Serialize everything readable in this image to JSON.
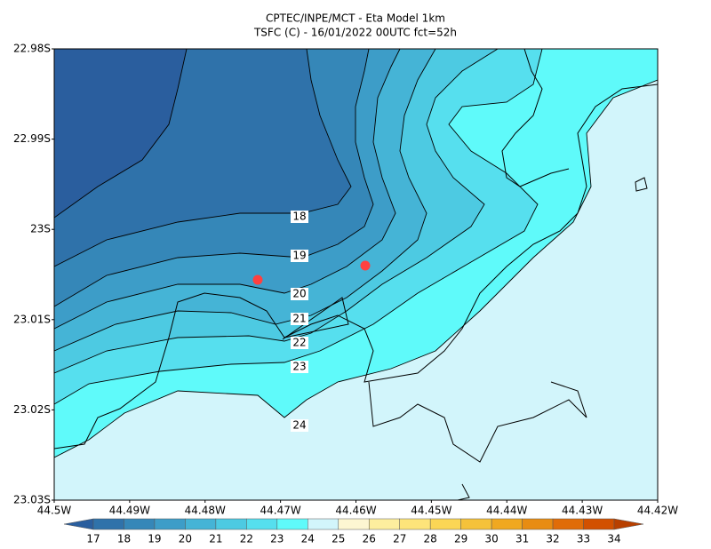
{
  "header": {
    "title": "CPTEC/INPE/MCT -  Eta Model 1km",
    "subtitle": "TSFC (C) - 16/01/2022 00UTC fct=52h"
  },
  "map": {
    "y_axis_labels": [
      "22.98S",
      "22.99S",
      "23S",
      "23.01S",
      "23.02S",
      "23.03S"
    ],
    "x_axis_labels": [
      "44.5W",
      "44.49W",
      "44.48W",
      "44.47W",
      "44.46W",
      "44.45W",
      "44.44W",
      "44.43W",
      "44.42W"
    ],
    "contour_levels": [
      18,
      19,
      20,
      21,
      22,
      23,
      24
    ]
  },
  "colorbar": {
    "levels": [
      17,
      18,
      19,
      20,
      21,
      22,
      23,
      24,
      25,
      26,
      27,
      28,
      29,
      30,
      31,
      32,
      33,
      34
    ],
    "colors": [
      "#2a5e9e",
      "#2f72aa",
      "#3587b8",
      "#3d9dc8",
      "#45b4d6",
      "#4dcae2",
      "#56dfee",
      "#5ffafa",
      "#d2f5fb",
      "#fdf6d2",
      "#fdee9e",
      "#fde47a",
      "#fbd655",
      "#f5c23a",
      "#f0a820",
      "#e88c12",
      "#e06c08",
      "#d25000",
      "#b84000"
    ]
  }
}
